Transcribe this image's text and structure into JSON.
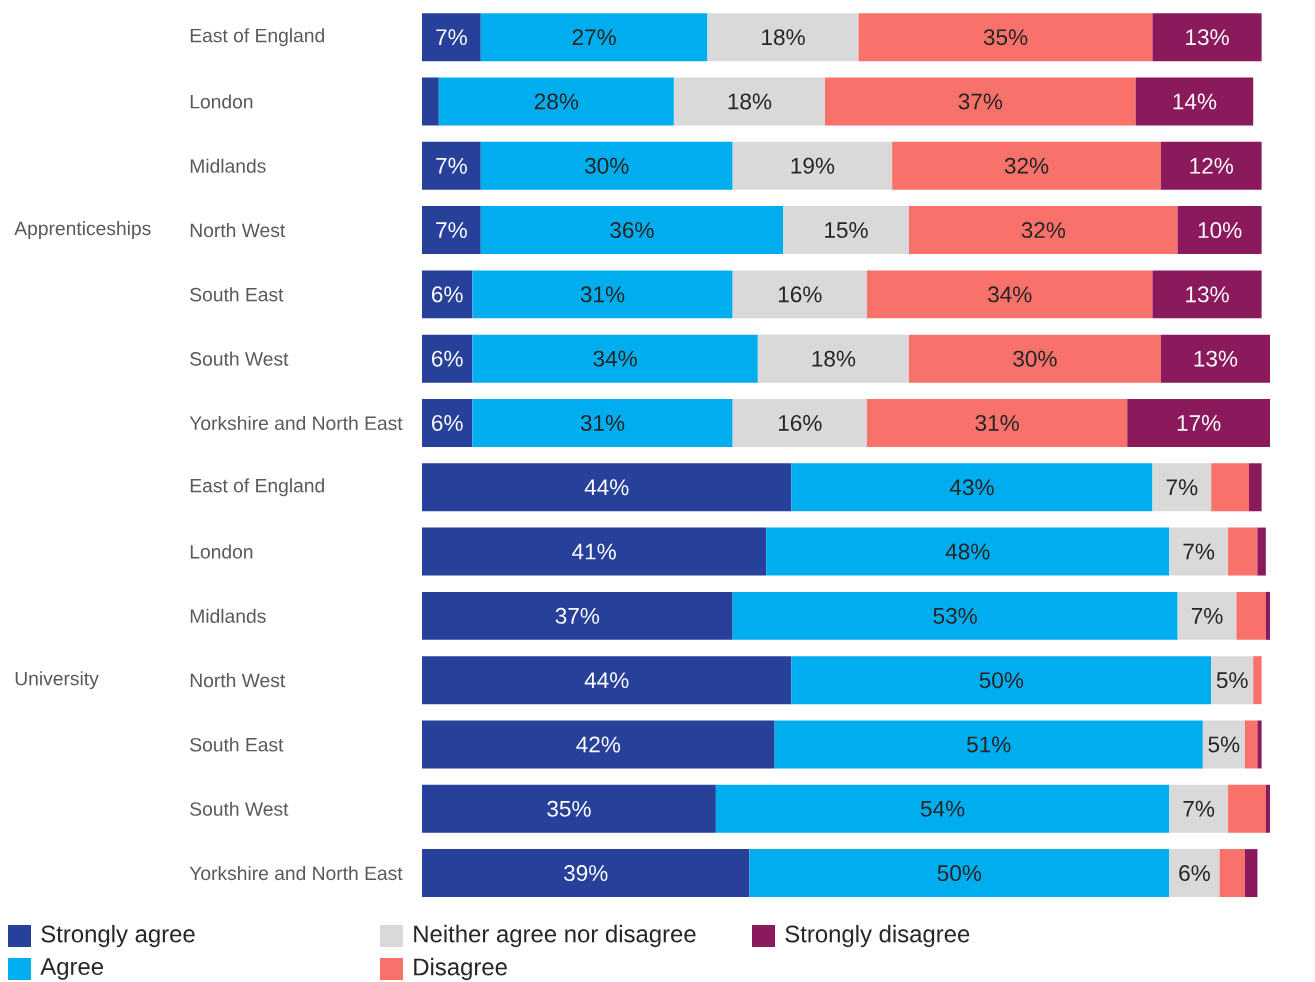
{
  "chart_data": {
    "type": "bar",
    "orientation": "horizontal",
    "stacked": true,
    "legend": "bottom",
    "categories": [
      "East of England",
      "London",
      "Midlands",
      "North West",
      "South East",
      "South West",
      "Yorkshire and North East",
      "East of England",
      "London",
      "Midlands",
      "North West",
      "South East",
      "South West",
      "Yorkshire and North East"
    ],
    "annotations": [
      "Apprenticeships",
      "University"
    ],
    "series": [
      {
        "name": "Strongly agree",
        "color": "#27409a",
        "values": [
          7,
          2,
          7,
          7,
          6,
          6,
          6,
          44,
          41,
          37,
          44,
          42,
          35,
          39
        ],
        "value_labels": [
          "7%",
          null,
          "7%",
          "7%",
          "6%",
          "6%",
          "6%",
          "44%",
          "41%",
          "37%",
          "44%",
          "42%",
          "35%",
          "39%"
        ]
      },
      {
        "name": "Agree",
        "color": "#00aeef",
        "values": [
          27,
          28,
          30,
          36,
          31,
          34,
          31,
          43,
          48,
          53,
          50,
          51,
          54,
          50
        ],
        "value_labels": [
          "27%",
          "28%",
          "30%",
          "36%",
          "31%",
          "34%",
          "31%",
          "43%",
          "48%",
          "53%",
          "50%",
          "51%",
          "54%",
          "50%"
        ]
      },
      {
        "name": "Neither agree nor disagree",
        "color": "#d9d9d9",
        "values": [
          18,
          18,
          19,
          15,
          16,
          18,
          16,
          7,
          7,
          7,
          5,
          5,
          7,
          6
        ],
        "value_labels": [
          "18%",
          "18%",
          "19%",
          "15%",
          "16%",
          "18%",
          "16%",
          "7%",
          "7%",
          "7%",
          "5%",
          "5%",
          "7%",
          "6%"
        ]
      },
      {
        "name": "Disagree",
        "color": "#f8716a",
        "values": [
          35,
          37,
          32,
          32,
          34,
          30,
          31,
          4.5,
          3.5,
          3.5,
          1,
          1.5,
          4.5,
          3
        ],
        "value_labels": [
          "35%",
          "37%",
          "32%",
          "32%",
          "34%",
          "30%",
          "31%",
          null,
          null,
          null,
          null,
          null,
          null,
          null
        ]
      },
      {
        "name": "Strongly disagree",
        "color": "#8b1a5c",
        "values": [
          13,
          14,
          12,
          10,
          13,
          13,
          17,
          1.5,
          1,
          0.5,
          null,
          0.5,
          0.5,
          1.5
        ],
        "value_labels": [
          "13%",
          "14%",
          "12%",
          "10%",
          "13%",
          "13%",
          "17%",
          null,
          null,
          null,
          null,
          null,
          null,
          null
        ]
      }
    ]
  }
}
